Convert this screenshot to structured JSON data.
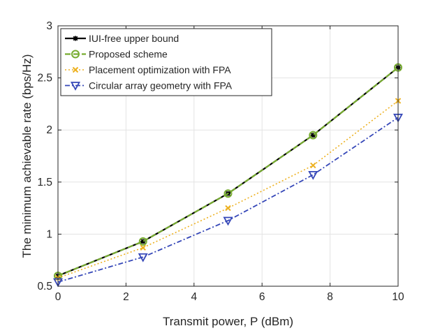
{
  "chart_data": {
    "type": "line",
    "xlabel": "Transmit power, P (dBm)",
    "ylabel": "The minimum achievable rate (bps/Hz)",
    "xlim": [
      0,
      10
    ],
    "ylim": [
      0.5,
      3
    ],
    "xticks": [
      0,
      2,
      4,
      6,
      8,
      10
    ],
    "yticks": [
      0.5,
      1,
      1.5,
      2,
      2.5,
      3
    ],
    "xtick_labels": [
      "0",
      "2",
      "4",
      "6",
      "8",
      "10"
    ],
    "ytick_labels": [
      "0.5",
      "1",
      "1.5",
      "2",
      "2.5",
      "3"
    ],
    "grid": true,
    "legend_position": "top-left",
    "x": [
      0,
      2.5,
      5,
      7.5,
      10
    ],
    "series": [
      {
        "name": "IUI-free upper bound",
        "values": [
          0.6,
          0.93,
          1.39,
          1.95,
          2.6
        ],
        "color": "#000000",
        "line_style": "solid",
        "marker": "asterisk"
      },
      {
        "name": "Proposed scheme",
        "values": [
          0.6,
          0.93,
          1.39,
          1.95,
          2.6
        ],
        "color": "#77ac30",
        "line_style": "dashed",
        "marker": "circle"
      },
      {
        "name": "Placement optimization with FPA",
        "values": [
          0.58,
          0.87,
          1.25,
          1.66,
          2.28
        ],
        "color": "#edb120",
        "line_style": "dotted",
        "marker": "x"
      },
      {
        "name": "Circular array geometry with FPA",
        "values": [
          0.54,
          0.78,
          1.13,
          1.57,
          2.12
        ],
        "color": "#3547b8",
        "line_style": "dash-dot",
        "marker": "triangle-down"
      }
    ]
  }
}
